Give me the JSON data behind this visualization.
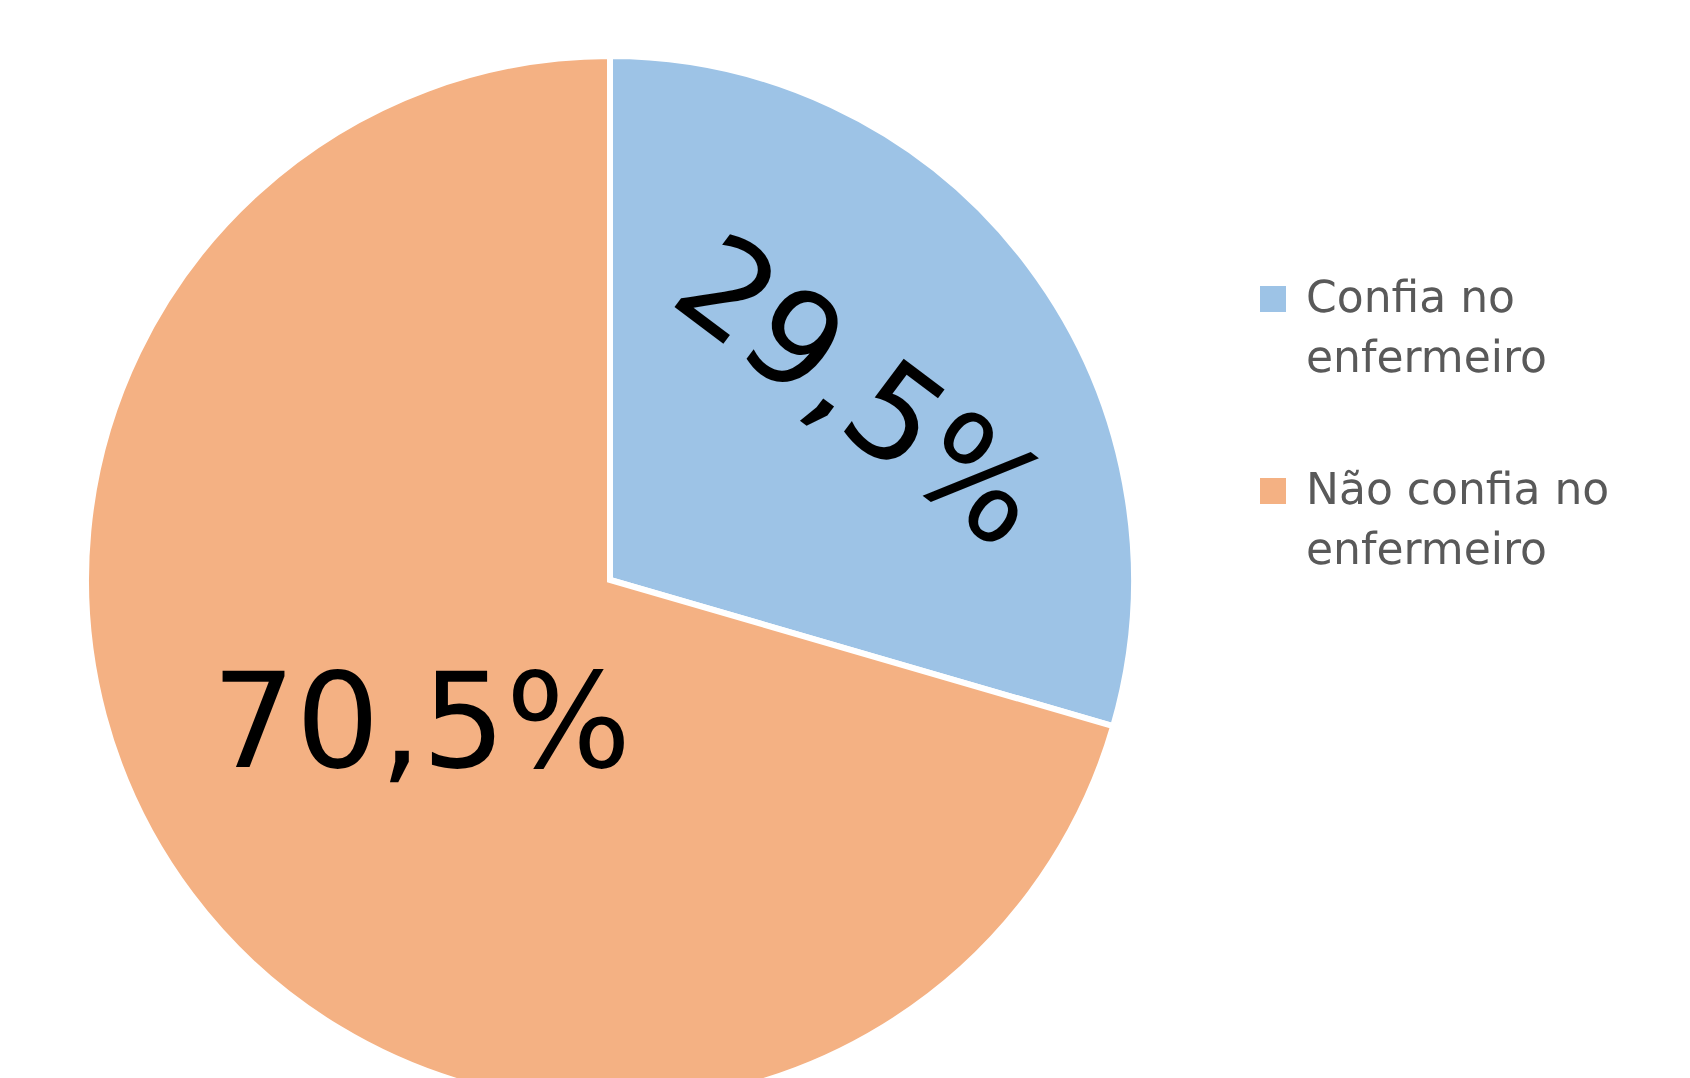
{
  "chart_data": {
    "type": "pie",
    "categories": [
      "Confia no enfermeiro",
      "Não confia no enfermeiro"
    ],
    "values": [
      29.5,
      70.5
    ],
    "colors": [
      "#9dc3e6",
      "#f4b183"
    ],
    "value_labels": [
      "29,5%",
      "70,5%"
    ],
    "legend": "right"
  }
}
